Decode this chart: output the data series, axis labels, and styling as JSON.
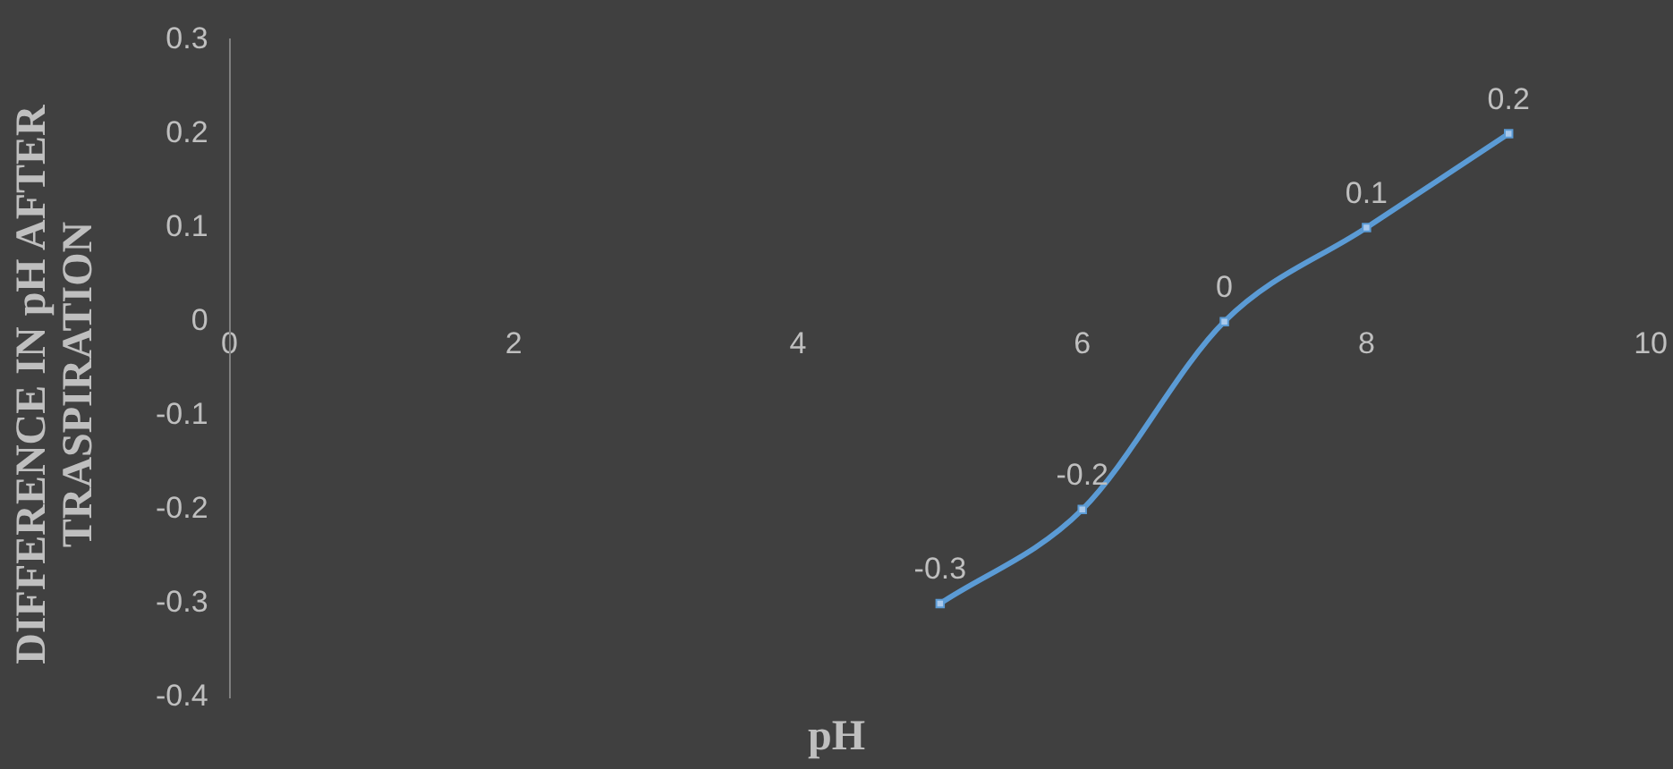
{
  "chart_data": {
    "type": "line",
    "xlabel": "pH",
    "ylabel": "DIFFERENCE IN pH AFTER TRASPIRATION",
    "x": [
      5,
      6,
      7,
      8,
      9
    ],
    "series": [
      {
        "color": "#5b9bd5",
        "values": [
          -0.3,
          -0.2,
          0,
          0.1,
          0.2
        ]
      }
    ],
    "xlim": [
      0,
      10
    ],
    "xticks": [
      0,
      2,
      4,
      6,
      8,
      10
    ],
    "ylim": [
      -0.4,
      0.3
    ],
    "yticks": [
      -0.4,
      -0.3,
      -0.2,
      -0.1,
      0,
      0.1,
      0.2,
      0.3
    ],
    "grid": false,
    "legend": false,
    "marker": "square",
    "line_style": "solid",
    "data_labels": true
  }
}
